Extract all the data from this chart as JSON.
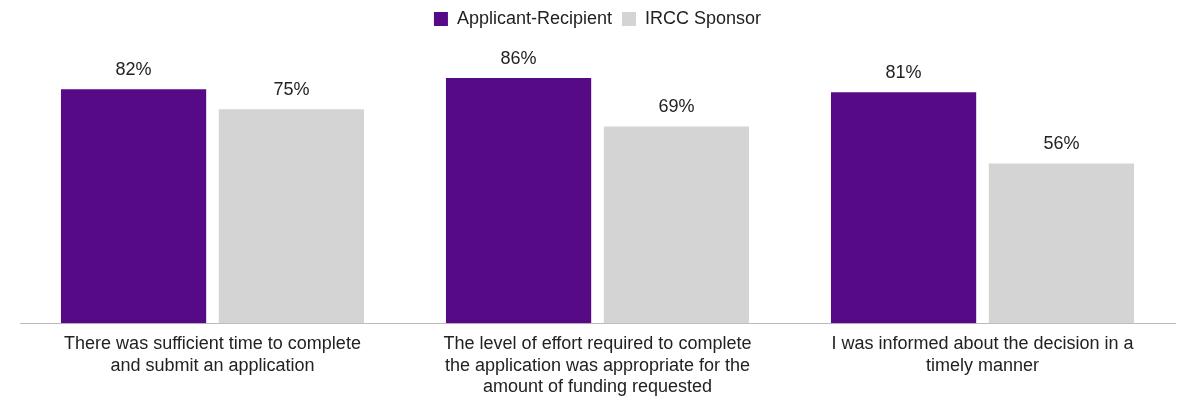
{
  "chart_data": {
    "type": "bar",
    "categories": [
      "There was sufficient time to complete and submit an application",
      "The level of effort required to complete the application was appropriate for the amount of funding requested",
      "I was informed about the decision in a timely manner"
    ],
    "series": [
      {
        "name": "Applicant-Recipient",
        "color": "#570a86",
        "values": [
          82,
          86,
          81
        ],
        "value_labels": [
          "82%",
          "86%",
          "81%"
        ]
      },
      {
        "name": "IRCC Sponsor",
        "color": "#d4d4d4",
        "values": [
          75,
          69,
          56
        ],
        "value_labels": [
          "75%",
          "69%",
          "56%"
        ]
      }
    ],
    "grid": false,
    "legend": "top",
    "tick_labels": "x"
  }
}
